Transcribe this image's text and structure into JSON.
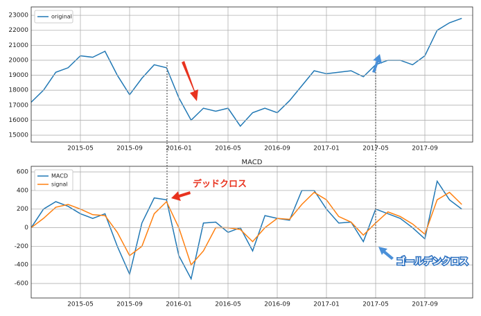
{
  "chart_data": [
    {
      "type": "line",
      "x": [
        "2015-01",
        "2015-02",
        "2015-03",
        "2015-04",
        "2015-05",
        "2015-06",
        "2015-07",
        "2015-08",
        "2015-09",
        "2015-10",
        "2015-11",
        "2015-12",
        "2016-01",
        "2016-02",
        "2016-03",
        "2016-04",
        "2016-05",
        "2016-06",
        "2016-07",
        "2016-08",
        "2016-09",
        "2016-10",
        "2016-11",
        "2016-12",
        "2017-01",
        "2017-02",
        "2017-03",
        "2017-04",
        "2017-05",
        "2017-06",
        "2017-07",
        "2017-08",
        "2017-09",
        "2017-10",
        "2017-11",
        "2017-12"
      ],
      "series": [
        {
          "name": "original",
          "color": "#1f77b4",
          "values": [
            17200,
            18000,
            19200,
            19500,
            20300,
            20200,
            20600,
            19000,
            17700,
            18800,
            19700,
            19500,
            17500,
            16000,
            16800,
            16600,
            16800,
            15600,
            16500,
            16800,
            16500,
            17300,
            18300,
            19300,
            19100,
            19200,
            19300,
            18900,
            19700,
            20000,
            20000,
            19700,
            20300,
            22000,
            22500,
            22800
          ]
        }
      ],
      "ylim": [
        14540,
        23560
      ],
      "yticks": [
        15000,
        16000,
        17000,
        18000,
        19000,
        20000,
        21000,
        22000,
        23000
      ],
      "xticks": [
        "2015-05",
        "2015-09",
        "2016-01",
        "2016-05",
        "2016-09",
        "2017-01",
        "2017-05",
        "2017-09"
      ],
      "grid": true,
      "legend": "upper left"
    },
    {
      "type": "line",
      "title": "MACD",
      "x": [
        "2015-01",
        "2015-02",
        "2015-03",
        "2015-04",
        "2015-05",
        "2015-06",
        "2015-07",
        "2015-08",
        "2015-09",
        "2015-10",
        "2015-11",
        "2015-12",
        "2016-01",
        "2016-02",
        "2016-03",
        "2016-04",
        "2016-05",
        "2016-06",
        "2016-07",
        "2016-08",
        "2016-09",
        "2016-10",
        "2016-11",
        "2016-12",
        "2017-01",
        "2017-02",
        "2017-03",
        "2017-04",
        "2017-05",
        "2017-06",
        "2017-07",
        "2017-08",
        "2017-09",
        "2017-10",
        "2017-11",
        "2017-12"
      ],
      "series": [
        {
          "name": "MACD",
          "color": "#1f77b4",
          "values": [
            0,
            200,
            280,
            230,
            150,
            100,
            150,
            -200,
            -500,
            50,
            320,
            300,
            -300,
            -550,
            50,
            60,
            -50,
            0,
            -250,
            130,
            100,
            80,
            400,
            400,
            200,
            50,
            60,
            -150,
            200,
            150,
            100,
            0,
            -120,
            500,
            300,
            200
          ]
        },
        {
          "name": "signal",
          "color": "#ff7f0e",
          "values": [
            0,
            100,
            220,
            250,
            200,
            140,
            130,
            -50,
            -300,
            -200,
            150,
            280,
            0,
            -400,
            -250,
            0,
            0,
            -20,
            -150,
            0,
            100,
            90,
            250,
            380,
            300,
            120,
            60,
            -80,
            50,
            170,
            120,
            40,
            -70,
            300,
            380,
            250
          ]
        }
      ],
      "ylim": [
        -756,
        660
      ],
      "yticks": [
        -600,
        -400,
        -200,
        0,
        200,
        400,
        600
      ],
      "xticks": [
        "2015-05",
        "2015-09",
        "2016-01",
        "2016-05",
        "2016-09",
        "2017-01",
        "2017-05",
        "2017-09"
      ],
      "grid": true,
      "legend": "upper left",
      "annotations": [
        "デッドクロス",
        "ゴールデンクロス"
      ]
    }
  ]
}
